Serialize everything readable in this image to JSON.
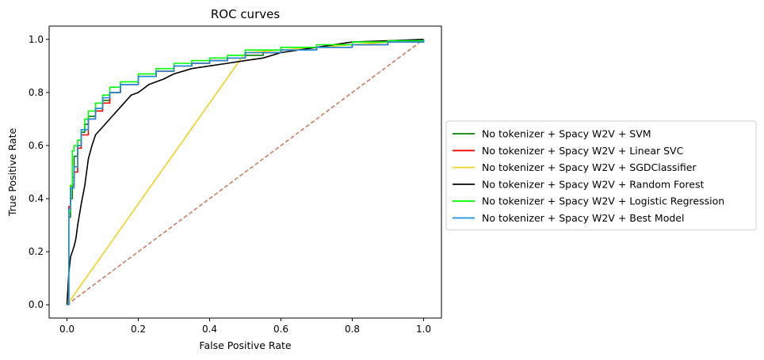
{
  "chart_data": {
    "type": "line",
    "title": "ROC curves",
    "xlabel": "False Positive Rate",
    "ylabel": "True Positive Rate",
    "xlim": [
      -0.05,
      1.05
    ],
    "ylim": [
      -0.05,
      1.05
    ],
    "xticks": [
      0.0,
      0.2,
      0.4,
      0.6,
      0.8,
      1.0
    ],
    "yticks": [
      0.0,
      0.2,
      0.4,
      0.6,
      0.8,
      1.0
    ],
    "xtick_labels": [
      "0.0",
      "0.2",
      "0.4",
      "0.6",
      "0.8",
      "1.0"
    ],
    "ytick_labels": [
      "0.0",
      "0.2",
      "0.4",
      "0.6",
      "0.8",
      "1.0"
    ],
    "grid": false,
    "legend_position": "outside-right",
    "series": [
      {
        "name": "No tokenizer + Spacy W2V + SVM",
        "color": "#008000",
        "step": true,
        "x": [
          0,
          0.005,
          0.01,
          0.015,
          0.02,
          0.03,
          0.04,
          0.05,
          0.06,
          0.08,
          0.1,
          0.12,
          0.15,
          0.2,
          0.25,
          0.3,
          0.35,
          0.4,
          0.45,
          0.5,
          0.55,
          0.6,
          0.7,
          0.8,
          0.9,
          1.0
        ],
        "y": [
          0,
          0.33,
          0.4,
          0.48,
          0.56,
          0.6,
          0.65,
          0.68,
          0.71,
          0.74,
          0.77,
          0.8,
          0.83,
          0.86,
          0.88,
          0.9,
          0.91,
          0.92,
          0.93,
          0.94,
          0.95,
          0.96,
          0.97,
          0.98,
          0.99,
          1.0
        ]
      },
      {
        "name": "No tokenizer + Spacy W2V + Linear SVC",
        "color": "#ff0000",
        "step": true,
        "x": [
          0,
          0.005,
          0.01,
          0.02,
          0.03,
          0.04,
          0.06,
          0.08,
          0.1,
          0.12,
          0.15,
          0.2,
          0.25,
          0.3,
          0.35,
          0.4,
          0.45,
          0.5,
          0.6,
          0.7,
          0.8,
          0.9,
          1.0
        ],
        "y": [
          0,
          0.37,
          0.45,
          0.5,
          0.59,
          0.64,
          0.7,
          0.73,
          0.76,
          0.8,
          0.83,
          0.86,
          0.88,
          0.9,
          0.91,
          0.92,
          0.93,
          0.95,
          0.96,
          0.97,
          0.98,
          0.99,
          1.0
        ]
      },
      {
        "name": "No tokenizer + Spacy W2V + SGDClassifier",
        "color": "#f5d020",
        "step": false,
        "x": [
          0,
          0.5,
          1.0
        ],
        "y": [
          0,
          0.95,
          1.0
        ]
      },
      {
        "name": "No tokenizer + Spacy W2V + Random Forest",
        "color": "#000000",
        "step": false,
        "x": [
          0,
          0.005,
          0.01,
          0.02,
          0.025,
          0.03,
          0.04,
          0.05,
          0.06,
          0.07,
          0.08,
          0.1,
          0.12,
          0.14,
          0.16,
          0.18,
          0.2,
          0.23,
          0.27,
          0.3,
          0.35,
          0.4,
          0.45,
          0.5,
          0.55,
          0.6,
          0.7,
          0.8,
          0.9,
          1.0
        ],
        "y": [
          0,
          0.12,
          0.18,
          0.22,
          0.25,
          0.3,
          0.38,
          0.45,
          0.55,
          0.6,
          0.64,
          0.67,
          0.7,
          0.73,
          0.76,
          0.79,
          0.8,
          0.83,
          0.85,
          0.87,
          0.89,
          0.9,
          0.91,
          0.92,
          0.93,
          0.95,
          0.97,
          0.99,
          0.995,
          1.0
        ]
      },
      {
        "name": "No tokenizer + Spacy W2V + Logistic Regression",
        "color": "#00ff00",
        "step": true,
        "x": [
          0,
          0.005,
          0.01,
          0.015,
          0.02,
          0.03,
          0.04,
          0.05,
          0.06,
          0.08,
          0.1,
          0.12,
          0.15,
          0.2,
          0.25,
          0.3,
          0.35,
          0.4,
          0.45,
          0.5,
          0.6,
          0.7,
          0.8,
          0.9,
          1.0
        ],
        "y": [
          0,
          0.35,
          0.45,
          0.58,
          0.6,
          0.62,
          0.66,
          0.7,
          0.73,
          0.76,
          0.79,
          0.82,
          0.84,
          0.87,
          0.89,
          0.91,
          0.92,
          0.93,
          0.94,
          0.96,
          0.97,
          0.98,
          0.99,
          0.995,
          1.0
        ]
      },
      {
        "name": "No tokenizer + Spacy W2V + Best Model",
        "color": "#1f8fe0",
        "step": true,
        "x": [
          0,
          0.005,
          0.01,
          0.02,
          0.03,
          0.04,
          0.06,
          0.08,
          0.1,
          0.12,
          0.15,
          0.2,
          0.25,
          0.3,
          0.35,
          0.4,
          0.45,
          0.5,
          0.6,
          0.7,
          0.8,
          0.9,
          1.0
        ],
        "y": [
          0,
          0.36,
          0.44,
          0.52,
          0.6,
          0.66,
          0.7,
          0.74,
          0.78,
          0.8,
          0.83,
          0.86,
          0.88,
          0.9,
          0.91,
          0.92,
          0.93,
          0.95,
          0.96,
          0.97,
          0.98,
          0.99,
          1.0
        ]
      }
    ],
    "reference_lines": [
      {
        "x": [
          0,
          1
        ],
        "y": [
          0,
          1
        ],
        "color": "#1f77b4",
        "dashed": true
      },
      {
        "x": [
          0,
          1
        ],
        "y": [
          0,
          1
        ],
        "color": "#e08060",
        "dashed": true
      }
    ]
  }
}
